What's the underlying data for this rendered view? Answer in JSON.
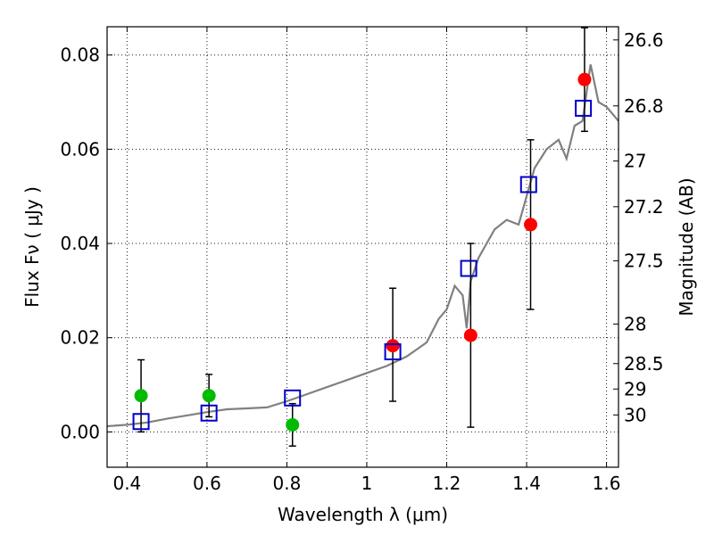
{
  "chart_data": {
    "type": "scatter",
    "xlabel": "Wavelength  λ (μm)",
    "ylabel": "Flux  Fν  ( μJy )",
    "y2label": "Magnitude (AB)",
    "xlim": [
      0.35,
      1.63
    ],
    "ylim": [
      -0.0075,
      0.086
    ],
    "grid": true,
    "x_ticks": [
      0.4,
      0.6,
      0.8,
      1.0,
      1.2,
      1.4,
      1.6
    ],
    "x_tick_labels": [
      "0.4",
      "0.6",
      "0.8",
      "1",
      "1.2",
      "1.4",
      "1.6"
    ],
    "y_ticks": [
      0.0,
      0.02,
      0.04,
      0.06,
      0.08
    ],
    "y_tick_labels": [
      "0.00",
      "0.02",
      "0.04",
      "0.06",
      "0.08"
    ],
    "y2_ticks": [
      {
        "label": "26.6",
        "flux": 0.0832
      },
      {
        "label": "26.8",
        "flux": 0.0692
      },
      {
        "label": "27",
        "flux": 0.0575
      },
      {
        "label": "27.2",
        "flux": 0.0478
      },
      {
        "label": "27.5",
        "flux": 0.0363
      },
      {
        "label": "28",
        "flux": 0.0229
      },
      {
        "label": "28.5",
        "flux": 0.0145
      },
      {
        "label": "29",
        "flux": 0.0091
      },
      {
        "label": "30",
        "flux": 0.0036
      }
    ],
    "series": [
      {
        "marker": "circle",
        "color": "#00bb00",
        "x": [
          0.435,
          0.605,
          0.814
        ],
        "y": [
          0.0077,
          0.0077,
          0.0015
        ],
        "yerr_low": [
          0.0077,
          0.0045,
          0.0045
        ],
        "yerr_high": [
          0.0076,
          0.0045,
          0.0045
        ]
      },
      {
        "marker": "circle",
        "color": "#ff0000",
        "x": [
          1.065,
          1.26,
          1.41,
          1.545
        ],
        "y": [
          0.0183,
          0.0205,
          0.044,
          0.0748
        ],
        "yerr_low": [
          0.0118,
          0.0195,
          0.018,
          0.011
        ],
        "yerr_high": [
          0.0122,
          0.0195,
          0.018,
          0.011
        ]
      },
      {
        "marker": "square-open",
        "color": "#0000cc",
        "x": [
          0.435,
          0.605,
          0.814,
          1.065,
          1.255,
          1.405,
          1.542
        ],
        "y": [
          0.0022,
          0.004,
          0.0072,
          0.017,
          0.0347,
          0.0525,
          0.0687
        ]
      },
      {
        "marker": "line",
        "color": "#808080",
        "x": [
          0.35,
          0.4,
          0.45,
          0.5,
          0.55,
          0.6,
          0.65,
          0.7,
          0.75,
          0.8,
          0.85,
          0.9,
          0.95,
          1.0,
          1.05,
          1.1,
          1.15,
          1.18,
          1.2,
          1.22,
          1.24,
          1.25,
          1.26,
          1.28,
          1.3,
          1.32,
          1.35,
          1.38,
          1.4,
          1.42,
          1.45,
          1.48,
          1.5,
          1.52,
          1.54,
          1.56,
          1.58,
          1.6,
          1.63
        ],
        "y": [
          0.0012,
          0.0015,
          0.002,
          0.0028,
          0.0035,
          0.0042,
          0.0048,
          0.005,
          0.0052,
          0.0065,
          0.008,
          0.0095,
          0.011,
          0.0125,
          0.014,
          0.016,
          0.019,
          0.024,
          0.026,
          0.031,
          0.029,
          0.022,
          0.032,
          0.037,
          0.04,
          0.043,
          0.045,
          0.044,
          0.05,
          0.056,
          0.06,
          0.062,
          0.058,
          0.065,
          0.066,
          0.078,
          0.07,
          0.069,
          0.066
        ]
      }
    ]
  }
}
